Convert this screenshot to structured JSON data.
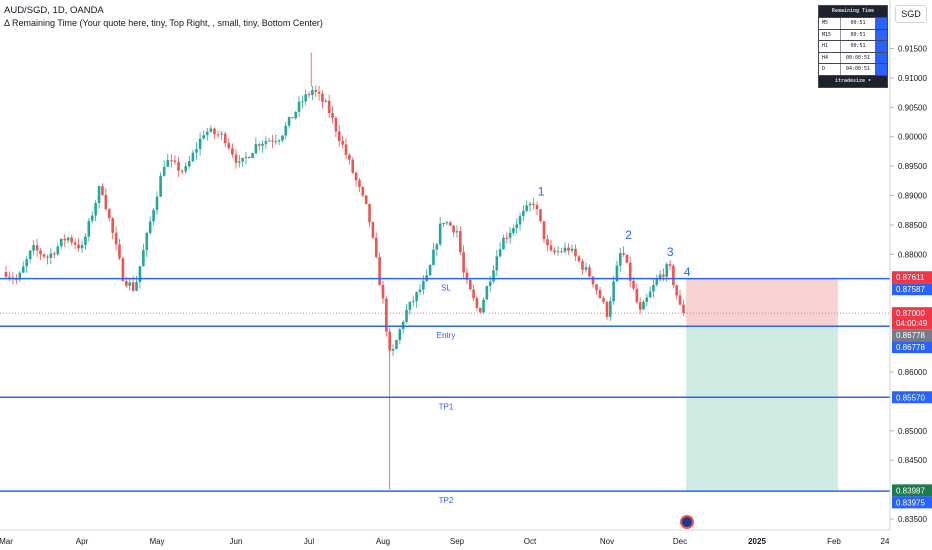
{
  "header": {
    "title": "AUD/SGD, 1D, OANDA",
    "subtitle": "Δ Remaining Time (Your quote here, tiny, Top Right, , small, tiny, Bottom Center)",
    "currency": "SGD"
  },
  "remaining_time_panel": {
    "title": "Remaining Time",
    "rows": [
      {
        "tf": "M5",
        "value": "00:51"
      },
      {
        "tf": "M15",
        "value": "00:51"
      },
      {
        "tf": "H1",
        "value": "00:51"
      },
      {
        "tf": "H4",
        "value": "00:00:51"
      },
      {
        "tf": "D",
        "value": "04:00:51"
      }
    ],
    "footer": "itradesize •"
  },
  "colors": {
    "up": "#26a69a",
    "down": "#ef5350",
    "level_line": "#2962ff",
    "stop_zone": "#f7c9c9",
    "target_zone": "#c8e6df",
    "badge_red": "#f23645",
    "badge_blue": "#2962ff",
    "badge_green": "#1e7b4d",
    "badge_gray": "#787b86"
  },
  "chart_data": {
    "type": "candlestick",
    "symbol": "AUD/SGD",
    "timeframe": "1D",
    "ylim": [
      0.8325,
      0.9195
    ],
    "y_ticks": [
      "0.91500",
      "0.91000",
      "0.90500",
      "0.90000",
      "0.89500",
      "0.89000",
      "0.88500",
      "0.88000",
      "0.86000",
      "0.85000",
      "0.84500",
      "0.83500"
    ],
    "x_ticks": [
      "Mar",
      "Apr",
      "May",
      "Jun",
      "Jul",
      "Aug",
      "Sep",
      "Oct",
      "Nov",
      "Dec",
      "2025",
      "Feb",
      "24"
    ],
    "levels": [
      {
        "label": "SL",
        "price": 0.87587
      },
      {
        "label": "Entry",
        "price": 0.86778
      },
      {
        "label": "TP1",
        "price": 0.8557
      },
      {
        "label": "TP2",
        "price": 0.83975
      }
    ],
    "price_badges": [
      {
        "price": 0.87611,
        "text": "0.87611",
        "color": "red"
      },
      {
        "price": 0.87587,
        "text": "0.87587",
        "color": "blue"
      },
      {
        "price": 0.87,
        "text": "0.87000",
        "sub": "04:00:49",
        "color": "red"
      },
      {
        "price": 0.86778,
        "text": "0.86778",
        "color": "gray"
      },
      {
        "price": 0.86778,
        "text": "0.86778",
        "color": "blue"
      },
      {
        "price": 0.8557,
        "text": "0.85570",
        "color": "blue"
      },
      {
        "price": 0.83987,
        "text": "0.83987",
        "color": "green"
      },
      {
        "price": 0.83975,
        "text": "0.83975",
        "color": "blue"
      }
    ],
    "wave_labels": [
      {
        "text": "1",
        "month_pos": 7.1,
        "price": 0.89
      },
      {
        "text": "2",
        "month_pos": 8.25,
        "price": 0.8826
      },
      {
        "text": "3",
        "month_pos": 8.82,
        "price": 0.8797
      },
      {
        "text": "4",
        "month_pos": 9.05,
        "price": 0.8763
      }
    ],
    "position": {
      "start_month_pos": 9.08,
      "end_month_pos": 11.08,
      "stop": 0.87587,
      "entry": 0.86778,
      "target": 0.8398
    },
    "anchors": [
      {
        "m": 0.0,
        "p": 0.877
      },
      {
        "m": 0.15,
        "p": 0.8755
      },
      {
        "m": 0.35,
        "p": 0.881
      },
      {
        "m": 0.55,
        "p": 0.8795
      },
      {
        "m": 0.8,
        "p": 0.883
      },
      {
        "m": 1.0,
        "p": 0.881
      },
      {
        "m": 1.25,
        "p": 0.892
      },
      {
        "m": 1.55,
        "p": 0.876
      },
      {
        "m": 1.7,
        "p": 0.874
      },
      {
        "m": 2.1,
        "p": 0.896
      },
      {
        "m": 2.35,
        "p": 0.894
      },
      {
        "m": 2.6,
        "p": 0.901
      },
      {
        "m": 2.85,
        "p": 0.9
      },
      {
        "m": 3.05,
        "p": 0.895
      },
      {
        "m": 3.3,
        "p": 0.899
      },
      {
        "m": 3.6,
        "p": 0.9
      },
      {
        "m": 3.9,
        "p": 0.906
      },
      {
        "m": 4.05,
        "p": 0.908
      },
      {
        "m": 4.25,
        "p": 0.905
      },
      {
        "m": 4.5,
        "p": 0.897
      },
      {
        "m": 4.8,
        "p": 0.887
      },
      {
        "m": 5.0,
        "p": 0.872
      },
      {
        "m": 5.1,
        "p": 0.862
      },
      {
        "m": 5.3,
        "p": 0.87
      },
      {
        "m": 5.6,
        "p": 0.876
      },
      {
        "m": 5.8,
        "p": 0.886
      },
      {
        "m": 6.0,
        "p": 0.884
      },
      {
        "m": 6.1,
        "p": 0.876
      },
      {
        "m": 6.3,
        "p": 0.87
      },
      {
        "m": 6.6,
        "p": 0.882
      },
      {
        "m": 6.85,
        "p": 0.886
      },
      {
        "m": 7.05,
        "p": 0.889
      },
      {
        "m": 7.25,
        "p": 0.88
      },
      {
        "m": 7.5,
        "p": 0.881
      },
      {
        "m": 7.8,
        "p": 0.876
      },
      {
        "m": 8.0,
        "p": 0.87
      },
      {
        "m": 8.2,
        "p": 0.881
      },
      {
        "m": 8.45,
        "p": 0.87
      },
      {
        "m": 8.7,
        "p": 0.876
      },
      {
        "m": 8.85,
        "p": 0.878
      },
      {
        "m": 9.0,
        "p": 0.871
      },
      {
        "m": 9.07,
        "p": 0.87
      }
    ]
  }
}
